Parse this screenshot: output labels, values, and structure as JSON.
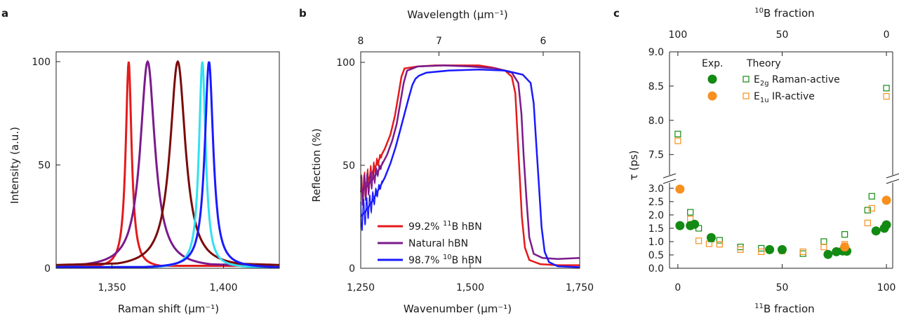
{
  "chart_data": [
    {
      "type": "line",
      "panel_label": "a",
      "xlabel": "Raman shift (μm⁻¹)",
      "ylabel": "Intensity (a.u.)",
      "xlim": [
        1325,
        1425
      ],
      "ylim": [
        0,
        100
      ],
      "xticks": [
        1350,
        1400
      ],
      "xtick_labels": [
        "1,350",
        "1,400"
      ],
      "yticks": [
        0,
        50,
        100
      ],
      "ytick_labels": [
        "0",
        "50",
        "100"
      ],
      "series": [
        {
          "color": "#e41a1c",
          "peak": 1357.5,
          "width": 1.6,
          "baseline": 1.2,
          "extra_baseline": 0
        },
        {
          "color": "#7b1a8c",
          "peak": 1366,
          "width": 4.0,
          "baseline": 1.0,
          "extra_baseline": 1.8
        },
        {
          "color": "#7a0a0a",
          "peak": 1379.5,
          "width": 4.2,
          "baseline": 1.6,
          "extra_baseline": 1.5
        },
        {
          "color": "#33e0f0",
          "peak": 1390.5,
          "width": 1.8,
          "baseline": 0.6,
          "extra_baseline": 0
        },
        {
          "color": "#1a1aff",
          "peak": 1393.5,
          "width": 2.3,
          "baseline": 0.6,
          "extra_baseline": 0
        }
      ]
    },
    {
      "type": "line",
      "panel_label": "b",
      "xlabel": "Wavenumber (μm⁻¹)",
      "ylabel": "Reflection (%)",
      "top_xlabel": "Wavelength (μm⁻¹)",
      "xlim": [
        1250,
        1750
      ],
      "ylim": [
        0,
        105
      ],
      "xticks": [
        1250,
        1500,
        1750
      ],
      "xtick_labels": [
        "1,250",
        "1,500",
        "1,750"
      ],
      "yticks": [
        0,
        50,
        100
      ],
      "ytick_labels": [
        "0",
        "50",
        "100"
      ],
      "top_xticks": [
        8,
        7,
        6
      ],
      "top_xtick_labels": [
        "8",
        "7",
        "6"
      ],
      "series": [
        {
          "name_prefix": "99.2% ",
          "name_iso": "11",
          "name_suffix": "B hBN",
          "color": "#e41a1c",
          "points": [
            [
              1250,
              37
            ],
            [
              1262,
              41
            ],
            [
              1275,
              46
            ],
            [
              1290,
              52
            ],
            [
              1305,
              58
            ],
            [
              1318,
              65
            ],
            [
              1328,
              74
            ],
            [
              1336,
              84
            ],
            [
              1343,
              93
            ],
            [
              1350,
              97
            ],
            [
              1380,
              98
            ],
            [
              1420,
              98.5
            ],
            [
              1480,
              98.5
            ],
            [
              1520,
              98.5
            ],
            [
              1550,
              97.5
            ],
            [
              1580,
              96
            ],
            [
              1595,
              93
            ],
            [
              1603,
              85
            ],
            [
              1608,
              65
            ],
            [
              1613,
              45
            ],
            [
              1618,
              25
            ],
            [
              1625,
              10
            ],
            [
              1635,
              4
            ],
            [
              1660,
              2
            ],
            [
              1700,
              1.5
            ],
            [
              1750,
              1.5
            ]
          ]
        },
        {
          "name": "Natural hBN",
          "color": "#7b1a8c",
          "points": [
            [
              1250,
              37
            ],
            [
              1265,
              40
            ],
            [
              1280,
              44
            ],
            [
              1295,
              49
            ],
            [
              1310,
              55
            ],
            [
              1322,
              62
            ],
            [
              1332,
              70
            ],
            [
              1340,
              80
            ],
            [
              1348,
              90
            ],
            [
              1356,
              96
            ],
            [
              1380,
              98
            ],
            [
              1440,
              98.5
            ],
            [
              1500,
              98
            ],
            [
              1560,
              97
            ],
            [
              1595,
              95
            ],
            [
              1610,
              90
            ],
            [
              1617,
              75
            ],
            [
              1622,
              55
            ],
            [
              1628,
              35
            ],
            [
              1635,
              15
            ],
            [
              1645,
              7
            ],
            [
              1665,
              5
            ],
            [
              1700,
              4.5
            ],
            [
              1750,
              5
            ]
          ]
        },
        {
          "name_prefix": "98.7% ",
          "name_iso": "10",
          "name_suffix": "B hBN",
          "color": "#1a1aff",
          "points": [
            [
              1250,
              25
            ],
            [
              1262,
              28
            ],
            [
              1275,
              32
            ],
            [
              1290,
              38
            ],
            [
              1305,
              44
            ],
            [
              1318,
              51
            ],
            [
              1330,
              59
            ],
            [
              1340,
              67
            ],
            [
              1350,
              75
            ],
            [
              1360,
              83
            ],
            [
              1368,
              89
            ],
            [
              1375,
              92
            ],
            [
              1383,
              93.5
            ],
            [
              1400,
              95
            ],
            [
              1450,
              96
            ],
            [
              1520,
              96.5
            ],
            [
              1580,
              96
            ],
            [
              1620,
              94
            ],
            [
              1638,
              90
            ],
            [
              1645,
              80
            ],
            [
              1651,
              60
            ],
            [
              1657,
              40
            ],
            [
              1663,
              20
            ],
            [
              1670,
              8
            ],
            [
              1680,
              3
            ],
            [
              1700,
              1
            ],
            [
              1750,
              0.5
            ]
          ]
        }
      ]
    },
    {
      "type": "scatter",
      "panel_label": "c",
      "xlabel_iso": "11",
      "xlabel_rest": "B fraction",
      "top_xlabel_iso": "10",
      "top_xlabel_rest": "B fraction",
      "ylabel": "τ (ps)",
      "xlim": [
        -4,
        103
      ],
      "ylim_lower": [
        0,
        3.1
      ],
      "ylim_upper": [
        7.2,
        9.0
      ],
      "xticks": [
        0,
        50,
        100
      ],
      "xtick_labels": [
        "0",
        "50",
        "100"
      ],
      "top_xtick_labels": [
        "100",
        "50",
        "0"
      ],
      "yticks_lower": [
        "0.0",
        "0.5",
        "1.0",
        "1.5",
        "2.0",
        "2.5",
        "3.0"
      ],
      "yticks_upper": [
        "7.5",
        "8.0",
        "8.5",
        "9.0"
      ],
      "legend": {
        "col_exp": "Exp.",
        "col_theory": "Theory",
        "rows": [
          {
            "sym": "E",
            "sub": "2g",
            "text": " Raman-active",
            "color": "#138a13"
          },
          {
            "sym": "E",
            "sub": "1u",
            "text": " IR-active",
            "color": "#f7901e"
          }
        ]
      },
      "exp_raman": [
        [
          1,
          1.6
        ],
        [
          6,
          1.6
        ],
        [
          8,
          1.65
        ],
        [
          16,
          1.15
        ],
        [
          44,
          0.7
        ],
        [
          50,
          0.7
        ],
        [
          72,
          0.52
        ],
        [
          76,
          0.62
        ],
        [
          79,
          0.65
        ],
        [
          81,
          0.64
        ],
        [
          95,
          1.4
        ],
        [
          99,
          1.5
        ],
        [
          100,
          1.63
        ]
      ],
      "exp_ir": [
        [
          1,
          2.97
        ],
        [
          80,
          0.8
        ],
        [
          100,
          2.55
        ]
      ],
      "theory_raman": [
        [
          0,
          7.8
        ],
        [
          6,
          2.1
        ],
        [
          10,
          1.5
        ],
        [
          16,
          1.1
        ],
        [
          20,
          1.05
        ],
        [
          30,
          0.8
        ],
        [
          40,
          0.75
        ],
        [
          50,
          0.67
        ],
        [
          60,
          0.55
        ],
        [
          70,
          1.0
        ],
        [
          80,
          1.27
        ],
        [
          91,
          2.18
        ],
        [
          93,
          2.7
        ],
        [
          100,
          8.47
        ]
      ],
      "theory_ir": [
        [
          0,
          7.7
        ],
        [
          6,
          1.85
        ],
        [
          10,
          1.03
        ],
        [
          15,
          0.92
        ],
        [
          20,
          0.9
        ],
        [
          30,
          0.7
        ],
        [
          40,
          0.62
        ],
        [
          50,
          0.65
        ],
        [
          60,
          0.62
        ],
        [
          70,
          0.8
        ],
        [
          80,
          0.9
        ],
        [
          91,
          1.7
        ],
        [
          93,
          2.25
        ],
        [
          100,
          8.35
        ]
      ],
      "colors": {
        "raman": "#138a13",
        "ir": "#f7901e"
      }
    }
  ]
}
